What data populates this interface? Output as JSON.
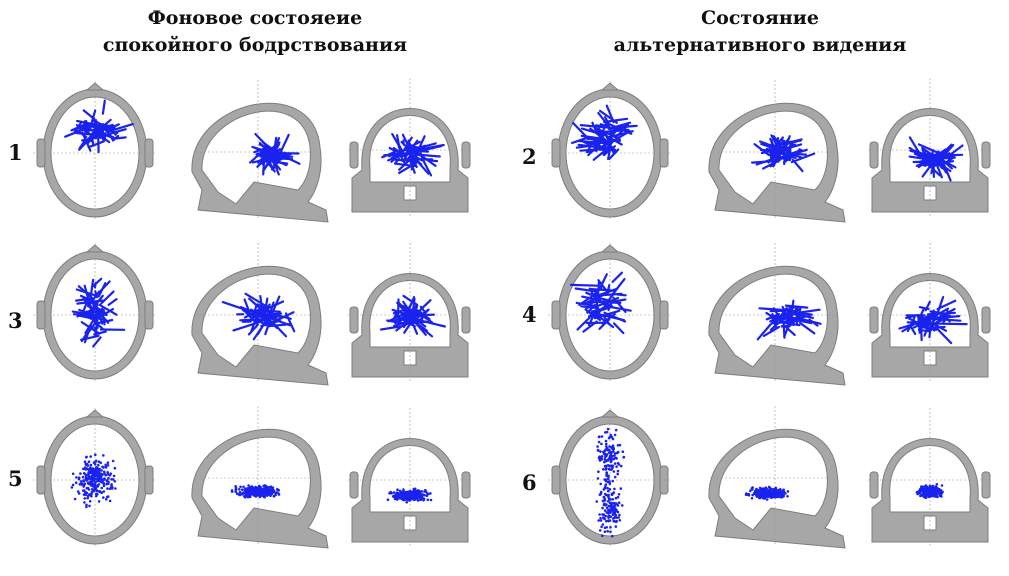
{
  "titles": {
    "left": {
      "line1": "Фоновое состояеие",
      "line2": "спокойного бодрствования"
    },
    "right": {
      "line1": "Состояние",
      "line2": "альтернативного  видения"
    }
  },
  "rows": [
    {
      "left_label": "1",
      "right_label": "2",
      "pattern": "trajectories"
    },
    {
      "left_label": "3",
      "right_label": "4",
      "pattern": "trajectories"
    },
    {
      "left_label": "5",
      "right_label": "6",
      "pattern": "scattered-points"
    }
  ],
  "views": [
    "axial",
    "sagittal",
    "coronal"
  ],
  "colors": {
    "head": "#a7a7a7",
    "head_stroke": "#7d7d7d",
    "dipole": "#1a23ee",
    "axis": "#9a9a9a"
  }
}
